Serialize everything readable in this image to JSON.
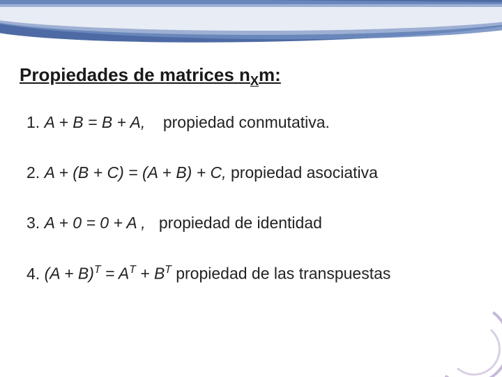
{
  "colors": {
    "text": "#1a1a1a",
    "wave_dark": "#3b5a9a",
    "wave_mid": "#6f8cc0",
    "wave_light": "#aab9da",
    "wave_pale": "#e8ecf5",
    "curl_outer": "#c7b8d8",
    "curl_inner": "#d9cfe6",
    "background": "#ffffff"
  },
  "typography": {
    "family": "Arial",
    "title_fontsize_pt": 20,
    "body_fontsize_pt": 17
  },
  "title": {
    "prefix": "Propiedades de  matrices n",
    "subscript": "X",
    "suffix": "m:"
  },
  "properties": [
    {
      "equation": "A + B = B + A,",
      "name": "propiedad conmutativa."
    },
    {
      "equation": "A + (B + C) = (A + B) + C,",
      "name": "propiedad asociativa"
    },
    {
      "equation": "A + 0 = 0 + A  ,",
      "name": "propiedad de identidad"
    },
    {
      "lhs_base": "(A + B)",
      "lhs_sup": "T",
      "eq": " = ",
      "rhs1_base": "A",
      "rhs1_sup": "T",
      "plus": " + ",
      "rhs2_base": "B",
      "rhs2_sup": "T",
      "name": "propiedad de las transpuestas"
    }
  ]
}
